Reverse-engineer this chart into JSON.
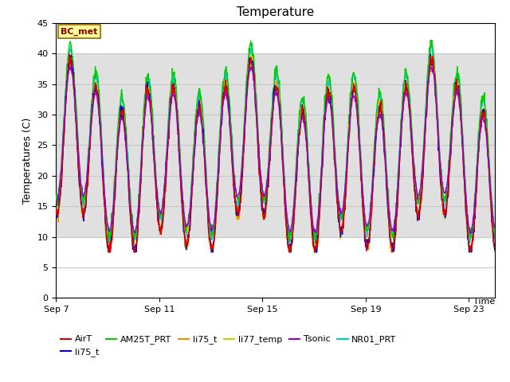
{
  "title": "Temperature",
  "ylabel": "Temperatures (C)",
  "xlabel": "Time",
  "ylim": [
    0,
    45
  ],
  "yticks": [
    0,
    5,
    10,
    15,
    20,
    25,
    30,
    35,
    40,
    45
  ],
  "x_tick_labels": [
    "Sep 7",
    "Sep 11",
    "Sep 15",
    "Sep 19",
    "Sep 23"
  ],
  "x_tick_positions": [
    0,
    4,
    8,
    12,
    16
  ],
  "legend_entries": [
    "AirT",
    "li75_t",
    "AM25T_PRT",
    "li75_t",
    "li77_temp",
    "Tsonic",
    "NR01_PRT"
  ],
  "legend_colors": [
    "#dd0000",
    "#0000cc",
    "#00cc00",
    "#ff8800",
    "#cccc00",
    "#9900cc",
    "#00cccc"
  ],
  "annotation_text": "BC_met",
  "annotation_bg": "#ffff99",
  "annotation_border": "#996600",
  "gray_band_low": 10,
  "gray_band_high": 40,
  "plot_bg": "#ffffff",
  "band_color": "#e0e0e0",
  "grid_color": "#c8c8c8",
  "n_days": 17,
  "n_points": 1020
}
